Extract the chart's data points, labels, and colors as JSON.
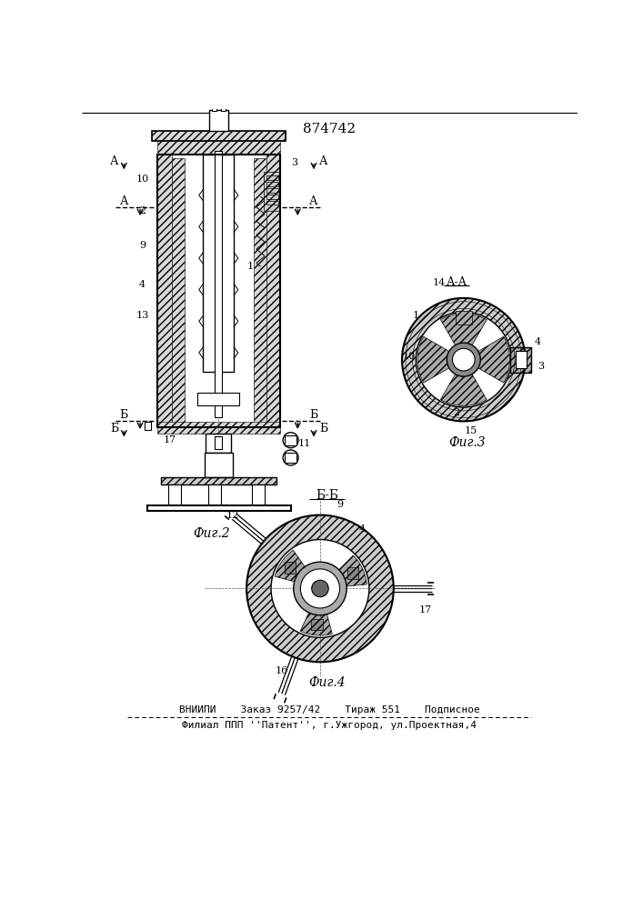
{
  "patent_number": "874742",
  "fig2_label": "Фиг.2",
  "fig3_label": "Фиг.3",
  "fig4_label": "Фиг.4",
  "section_aa": "А-А",
  "section_bb": "Б-Б",
  "footer_line1": "ВНИИПИ    Заказ 9257/42    Тираж 551    Подписное",
  "footer_line2": "Филиал ППП ''Патент'', г.Ужгород, ул.Проектная,4",
  "bg_color": "#ffffff",
  "line_color": "#000000"
}
